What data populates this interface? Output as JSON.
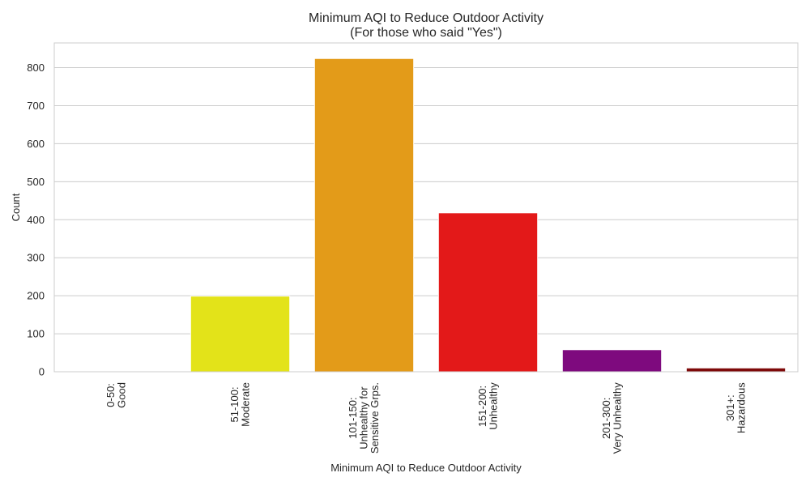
{
  "chart_data": {
    "type": "bar",
    "title_lines": [
      "Minimum AQI to Reduce Outdoor Activity",
      "(For those who said \"Yes\")"
    ],
    "xlabel": "Minimum AQI to Reduce Outdoor Activity",
    "ylabel": "Count",
    "categories": [
      [
        "0-50:",
        "Good"
      ],
      [
        "51-100:",
        "Moderate"
      ],
      [
        "101-150:",
        "Unhealthy for",
        "Sensitive Grps."
      ],
      [
        "151-200:",
        "Unhealthy"
      ],
      [
        "201-300:",
        "Very Unhealthy"
      ],
      [
        "301+:",
        "Hazardous"
      ]
    ],
    "values": [
      0,
      199,
      824,
      418,
      58,
      10
    ],
    "colors": [
      "#00e400",
      "#e3e319",
      "#e39b19",
      "#e31919",
      "#7e0a7e",
      "#7e0a0a"
    ],
    "ylim": [
      0,
      865
    ],
    "yticks": [
      0,
      100,
      200,
      300,
      400,
      500,
      600,
      700,
      800
    ],
    "grid": true,
    "style": "whitegrid"
  }
}
